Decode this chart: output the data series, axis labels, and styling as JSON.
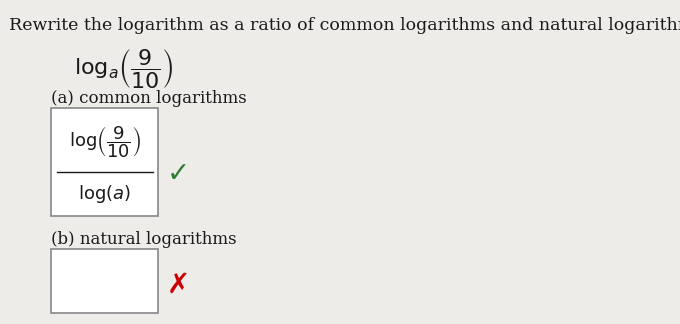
{
  "title": "Rewrite the logarithm as a ratio of common logarithms and natural logarithms.",
  "check_color": "#2e7d32",
  "x_color": "#cc0000",
  "bg_color": "#eeece8",
  "text_color": "#1a1a1a",
  "box_edge_color": "#888888",
  "title_fontsize": 12.5,
  "label_fontsize": 12,
  "math_fontsize": 13,
  "fig_width": 6.8,
  "fig_height": 3.24,
  "dpi": 100
}
